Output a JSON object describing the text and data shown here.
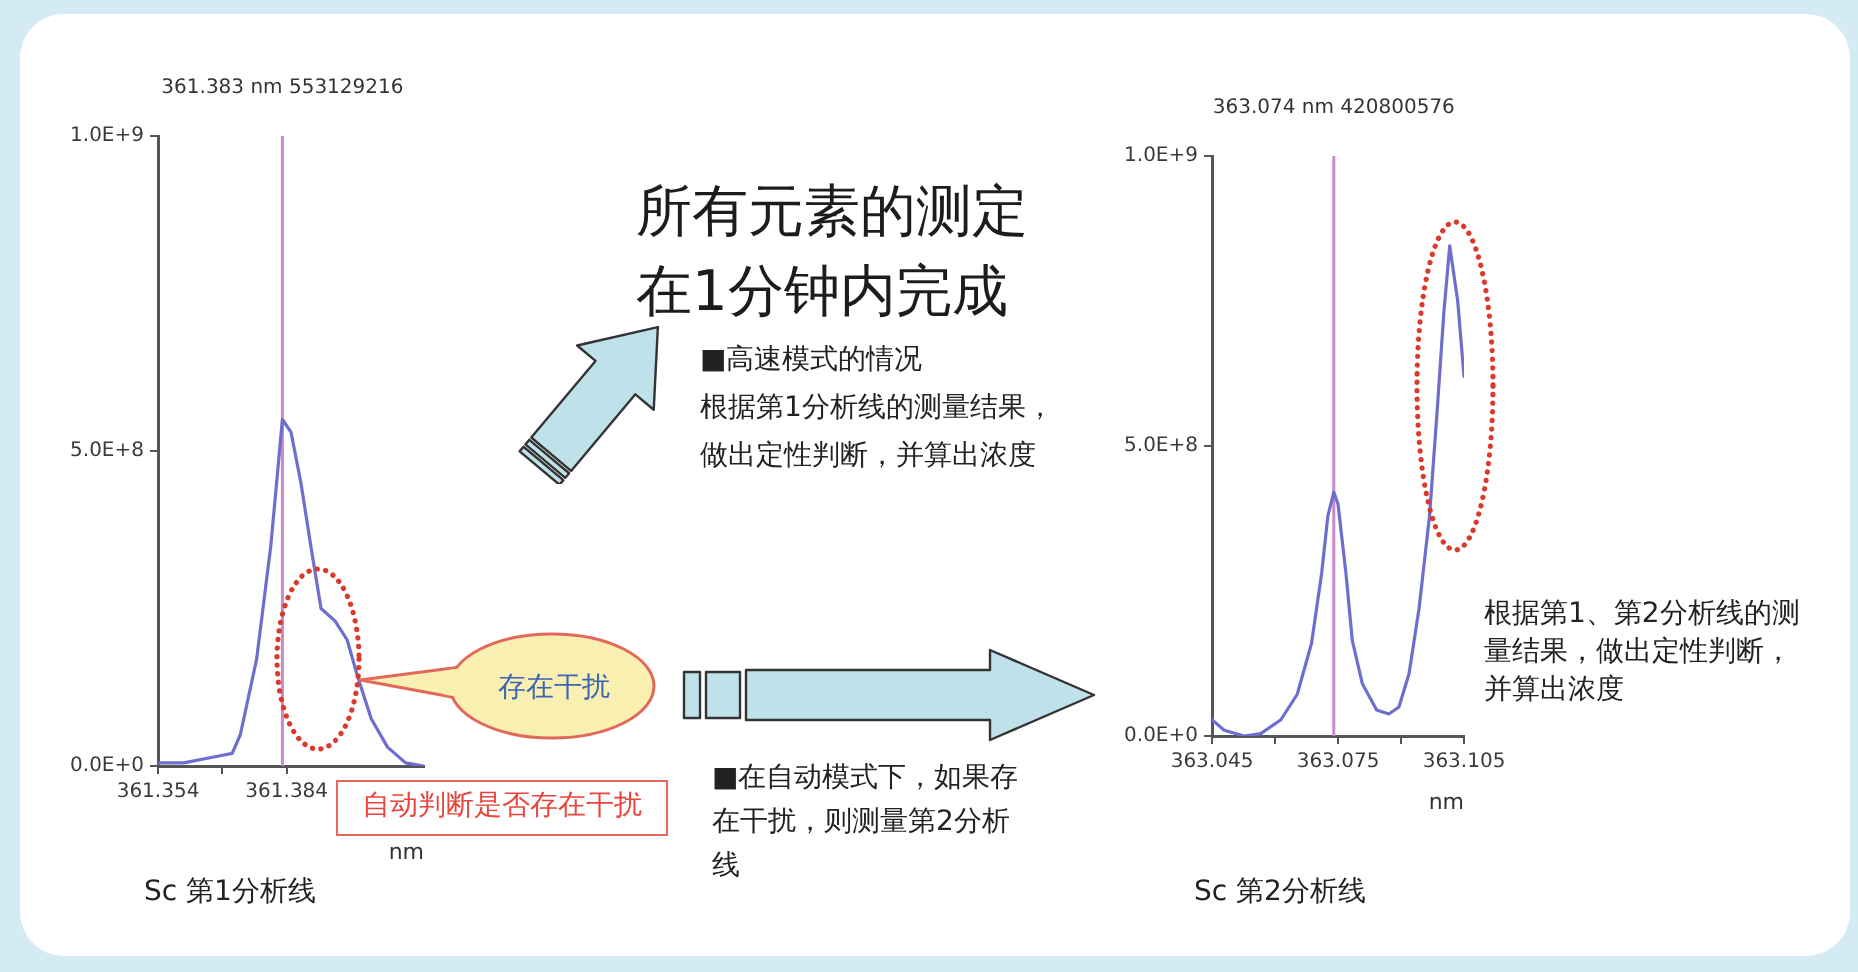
{
  "chart_data": [
    {
      "type": "line",
      "x": [
        361.354,
        361.36,
        361.3676,
        361.3713,
        361.3732,
        361.377,
        361.3803,
        361.383,
        361.385,
        361.3873,
        361.3896,
        361.392,
        361.3953,
        361.3981,
        361.4004,
        361.4037,
        361.4075,
        361.4117,
        361.416
      ],
      "values": [
        5000000.0,
        5000000.0,
        15000000.0,
        20000000.0,
        50000000.0,
        170000000.0,
        350000000.0,
        550000000.0,
        530000000.0,
        450000000.0,
        350000000.0,
        250000000.0,
        230000000.0,
        200000000.0,
        145000000.0,
        75000000.0,
        30000000.0,
        5000000.0,
        0
      ],
      "color": "#6e6ecf",
      "marker": "none",
      "xlim": [
        361.354,
        361.416
      ],
      "xticks": [
        361.354,
        {
          "value": 361.369,
          "label": null
        },
        361.384
      ],
      "ylim": [
        0,
        1000000000.0
      ],
      "yticks": [
        {
          "value": 0,
          "label": "0.0E+0"
        },
        {
          "value": 500000000.0,
          "label": "5.0E+8"
        },
        {
          "value": 1000000000.0,
          "label": "1.0E+9"
        }
      ],
      "xlabel": "nm",
      "ref_lines": [
        {
          "axis": "x",
          "value": 361.383,
          "label": "361.383 nm 553129216",
          "color": "#c98ac9"
        }
      ],
      "annotations": [
        "存在干扰",
        "自动判断是否存在干扰",
        "Sc 第1分析线"
      ]
    },
    {
      "type": "other",
      "title": "所有元素的测定在1分钟内完成",
      "annotations": [
        "■高速模式的情况",
        "根据第1分析线的测量结果，做出定性判断，并算出浓度",
        "■在自动模式下，如果存在干扰，则测量第2分析线"
      ]
    },
    {
      "type": "line",
      "x": [
        363.045,
        363.0479,
        363.0527,
        363.0566,
        363.0614,
        363.0653,
        363.0687,
        363.0711,
        363.0726,
        363.074,
        363.075,
        363.0769,
        363.0784,
        363.0808,
        363.0842,
        363.0871,
        363.0895,
        363.0919,
        363.0943,
        363.0968,
        363.0987,
        363.1002,
        363.1016,
        363.1035,
        363.105
      ],
      "values": [
        28000000.0,
        10000000.0,
        0,
        4000000.0,
        28000000.0,
        72000000.0,
        160000000.0,
        280000000.0,
        380000000.0,
        420000000.0,
        400000000.0,
        280000000.0,
        165000000.0,
        90000000.0,
        45000000.0,
        38000000.0,
        50000000.0,
        107000000.0,
        220000000.0,
        380000000.0,
        570000000.0,
        730000000.0,
        845000000.0,
        750000000.0,
        620000000.0
      ],
      "color": "#6e6ecf",
      "marker": "none",
      "xlim": [
        363.045,
        363.105
      ],
      "xticks": [
        363.045,
        {
          "value": 363.06,
          "label": null
        },
        363.075,
        {
          "value": 363.09,
          "label": null
        },
        363.105
      ],
      "ylim": [
        0,
        1000000000.0
      ],
      "yticks": [
        {
          "value": 0,
          "label": "0.0E+0"
        },
        {
          "value": 500000000.0,
          "label": "5.0E+8"
        },
        {
          "value": 1000000000.0,
          "label": "1.0E+9"
        }
      ],
      "xlabel": "nm",
      "ref_lines": [
        {
          "axis": "x",
          "value": 363.074,
          "label": "363.074 nm 420800576",
          "color": "#c98ac9"
        }
      ],
      "annotations": [
        "根据第1、第2分析线的测量结果，做出定性判断，并算出浓度",
        "Sc 第2分析线"
      ]
    }
  ]
}
